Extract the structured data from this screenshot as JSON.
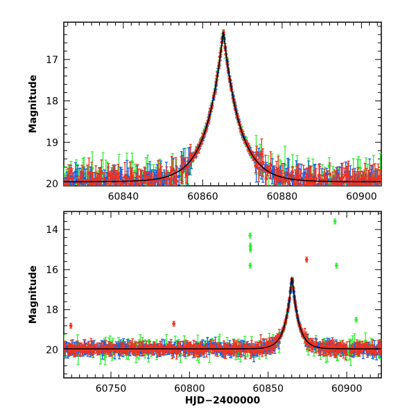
{
  "colors": {
    "green": "#33ee33",
    "blue": "#1560e8",
    "red": "#ee3322",
    "model": "#000000"
  },
  "chart_data": [
    {
      "id": "top",
      "type": "scatter",
      "xlim": [
        60825,
        60905
      ],
      "ylim": [
        20.05,
        16.1
      ],
      "ylim_note": "inverted magnitude axis",
      "xticks": [
        60840,
        60860,
        60880,
        60900
      ],
      "yticks": [
        17,
        18,
        19,
        20
      ],
      "xminor": 2,
      "yminor": 0.2,
      "xlabel": "",
      "ylabel": "Magnitude",
      "model_peak": {
        "t0": 60865.2,
        "peak_mag": 16.3,
        "baseline_mag": 19.95,
        "tau": 4.2
      }
    },
    {
      "id": "bottom",
      "type": "scatter",
      "xlim": [
        60720,
        60922
      ],
      "ylim": [
        21.4,
        13.1
      ],
      "ylim_note": "inverted magnitude axis",
      "xticks": [
        60750,
        60800,
        60850,
        60900
      ],
      "yticks": [
        14,
        16,
        18,
        20
      ],
      "xminor": 5,
      "yminor": 0.4,
      "xlabel": "HJD−2400000",
      "ylabel": "Magnitude",
      "model_peak": {
        "t0": 60865.2,
        "peak_mag": 16.3,
        "baseline_mag": 19.95,
        "tau": 4.2
      },
      "outliers": [
        {
          "x": 60838.5,
          "y": 14.3,
          "series": "green"
        },
        {
          "x": 60838.7,
          "y": 14.8,
          "series": "green"
        },
        {
          "x": 60838.8,
          "y": 15.0,
          "series": "green"
        },
        {
          "x": 60838.6,
          "y": 15.8,
          "series": "green"
        },
        {
          "x": 60874.5,
          "y": 15.5,
          "series": "red"
        },
        {
          "x": 60892.5,
          "y": 13.6,
          "series": "green"
        },
        {
          "x": 60893.5,
          "y": 15.8,
          "series": "green"
        },
        {
          "x": 60906.0,
          "y": 18.5,
          "series": "green"
        },
        {
          "x": 60724.5,
          "y": 18.8,
          "series": "red"
        },
        {
          "x": 60790.0,
          "y": 18.7,
          "series": "red"
        }
      ]
    }
  ],
  "labels": {
    "top_ylabel": "Magnitude",
    "bottom_ylabel": "Magnitude",
    "bottom_xlabel": "HJD−2400000"
  }
}
